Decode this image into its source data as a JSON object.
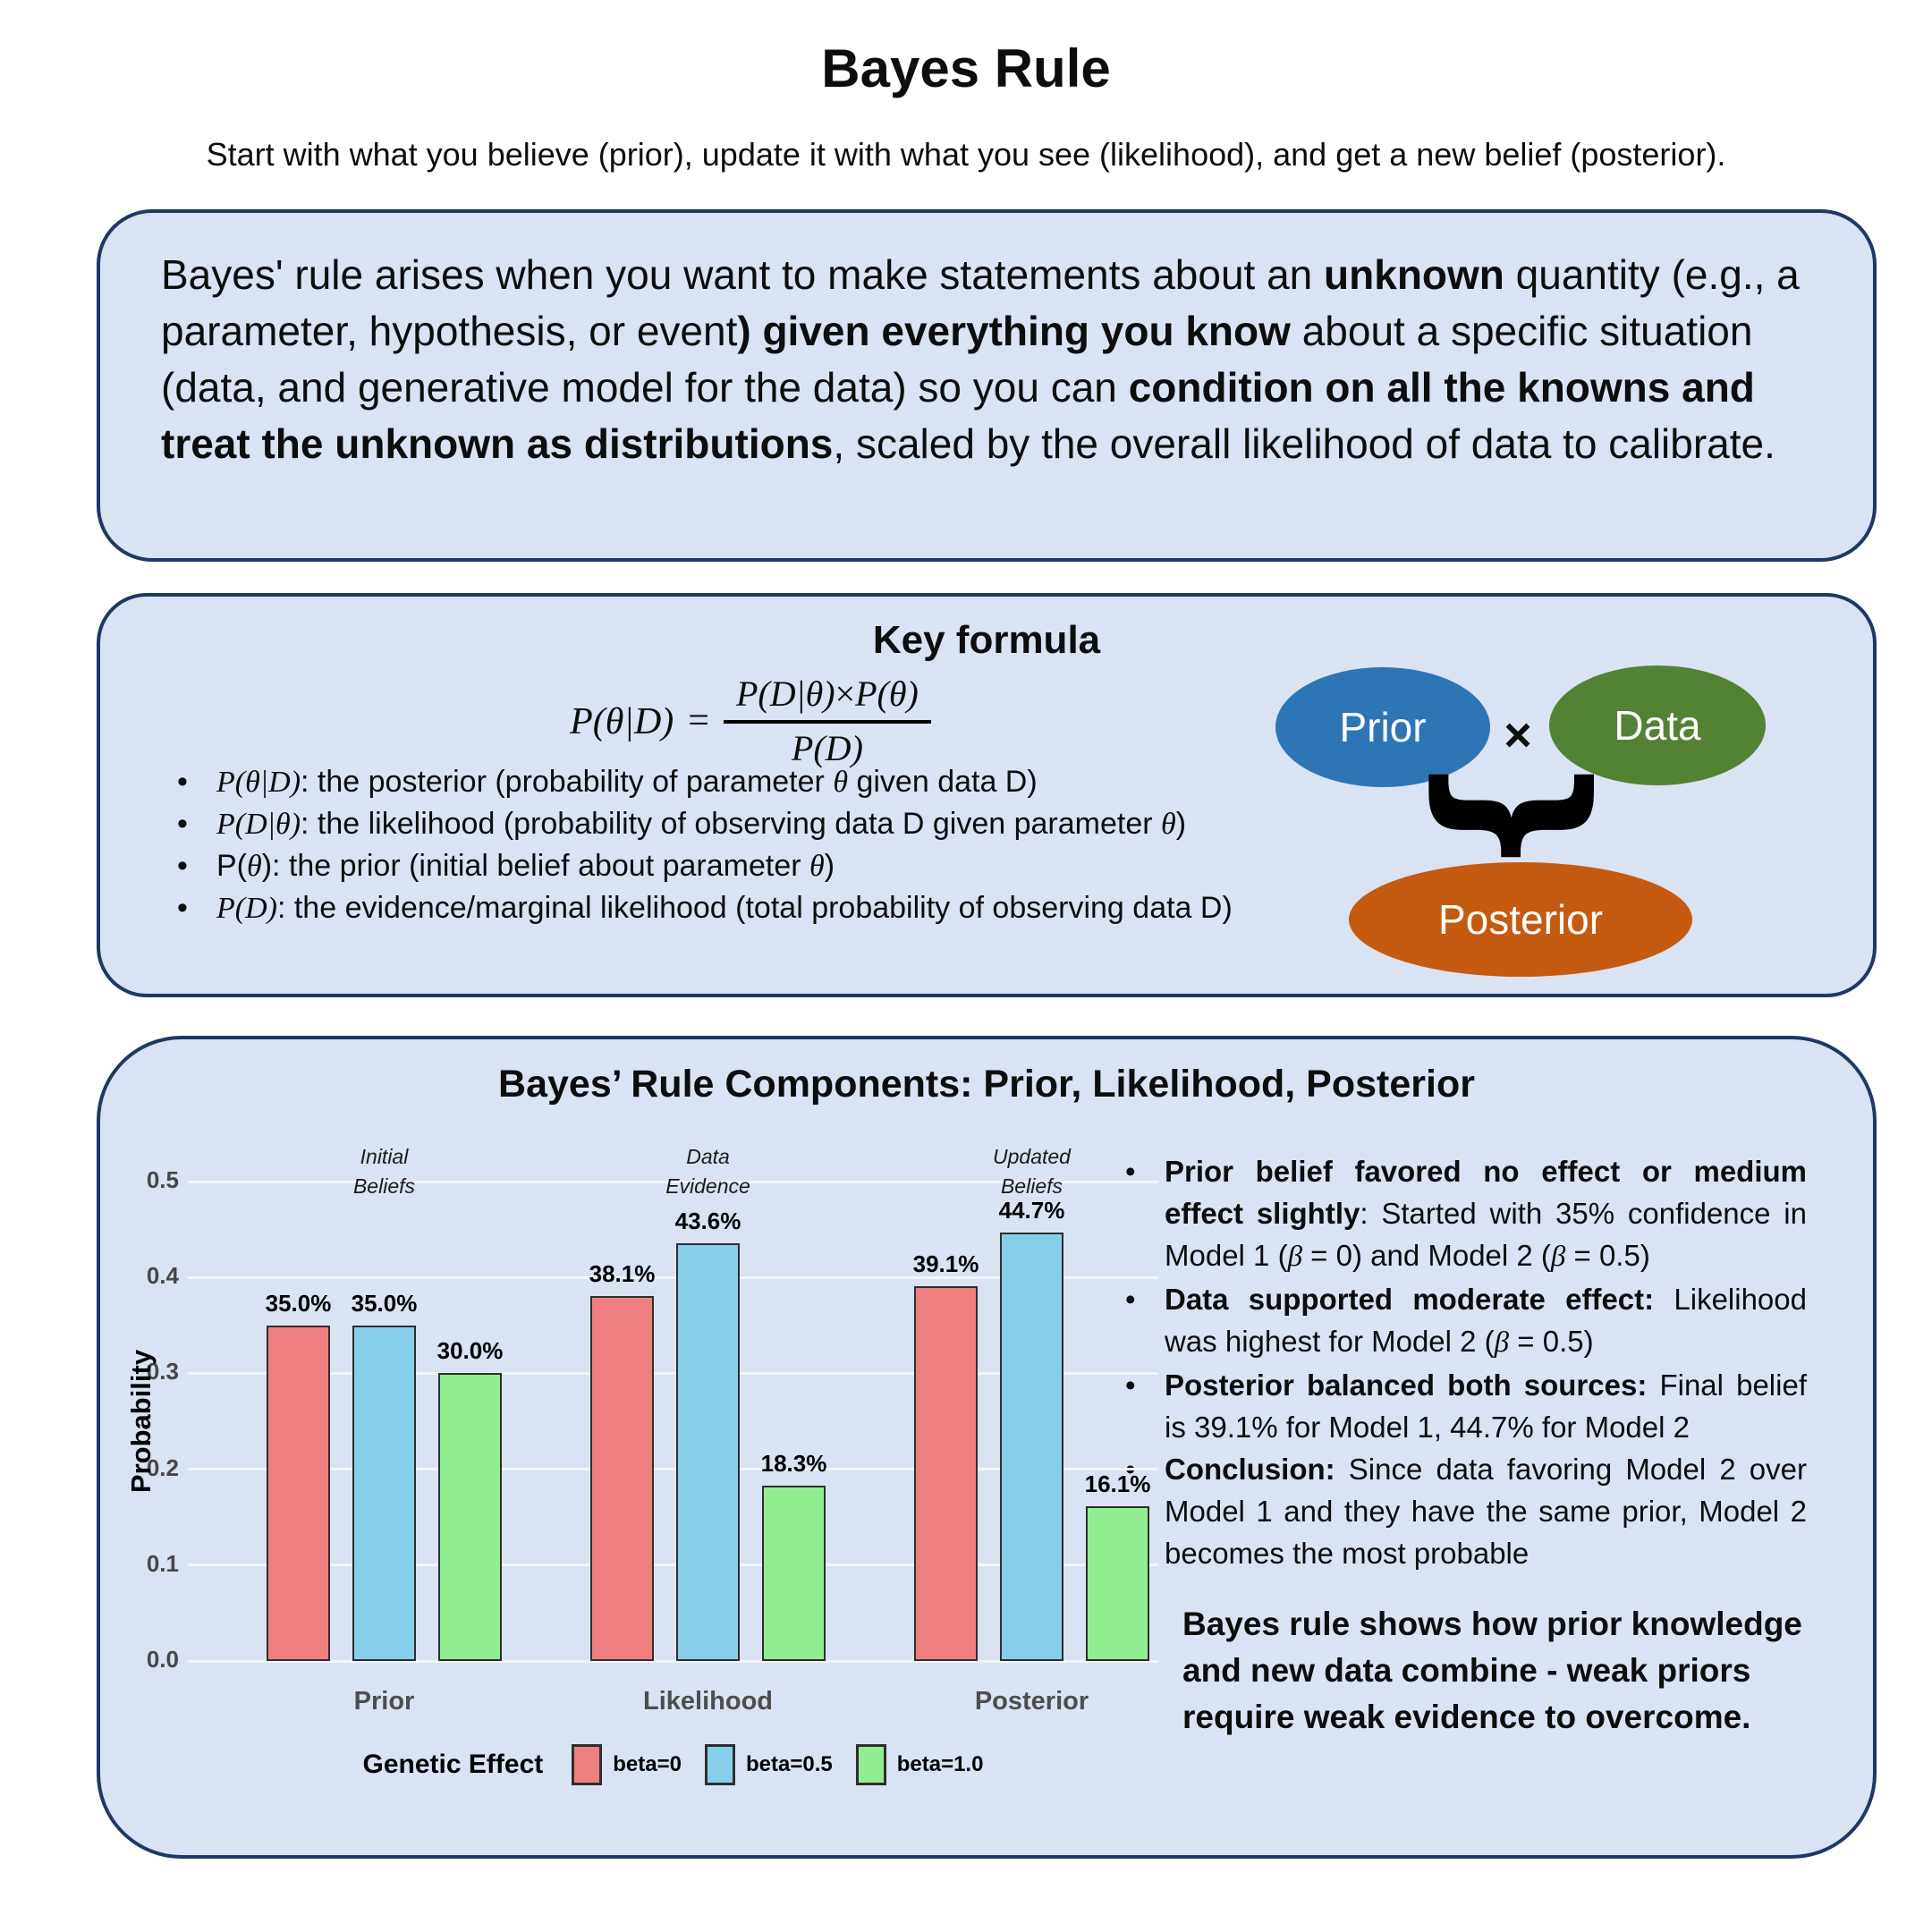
{
  "page": {
    "title": "Bayes Rule",
    "subtitle": "Start with what you believe (prior), update it with what you see (likelihood), and get a new belief (posterior)."
  },
  "theme": {
    "box_background": "#dae3f3",
    "box_border": "#1f3864",
    "grid_color": "#f2f6fb",
    "tick_color": "#474747",
    "category_color": "#4d4d4d"
  },
  "intro_box": {
    "segments": [
      {
        "t": "Bayes' rule arises when you want to make statements about an "
      },
      {
        "t": "unknown",
        "b": 1
      },
      {
        "t": " quantity (e.g., a parameter, hypothesis, or event"
      },
      {
        "t": ") given everything you know",
        "b": 1
      },
      {
        "t": " about a specific situation (data, and generative model for the data) so you can "
      },
      {
        "t": "condition on all the knowns and treat the unknown as distributions",
        "b": 1
      },
      {
        "t": ", scaled by the overall likelihood of data to calibrate."
      }
    ]
  },
  "formula_box": {
    "title": "Key formula",
    "formula": {
      "lhs": [
        {
          "t": "P(θ|D)",
          "m": 1
        }
      ],
      "eq": "=",
      "numerator": [
        {
          "t": "P(D|θ)",
          "m": 1
        },
        {
          "t": "×",
          "s": 1
        },
        {
          "t": "P(θ)",
          "m": 1
        }
      ],
      "denominator": [
        {
          "t": "P(D)",
          "m": 1
        }
      ]
    },
    "bullets": [
      [
        {
          "t": "P(θ|D)",
          "m": 1
        },
        {
          "t": ": the posterior (probability of parameter "
        },
        {
          "t": "θ",
          "m": 1
        },
        {
          "t": " given data D)"
        }
      ],
      [
        {
          "t": "P(D|θ)",
          "m": 1
        },
        {
          "t": ": the likelihood (probability of observing data D given parameter "
        },
        {
          "t": "θ",
          "m": 1
        },
        {
          "t": ")"
        }
      ],
      [
        {
          "t": "P("
        },
        {
          "t": "θ",
          "m": 1
        },
        {
          "t": "): the prior (initial belief about parameter "
        },
        {
          "t": "θ",
          "m": 1
        },
        {
          "t": ")"
        }
      ],
      [
        {
          "t": "P(D)",
          "m": 1
        },
        {
          "t": ": the evidence/marginal likelihood (total probability of observing data D)"
        }
      ]
    ],
    "diagram": {
      "prior_label": "Prior",
      "times": "×",
      "data_label": "Data",
      "brace_glyph": "}",
      "posterior_label": "Posterior",
      "prior_color": "#2e75b6",
      "data_color": "#548235",
      "posterior_color": "#c55a11"
    }
  },
  "chart_box": {
    "bullets": [
      [
        {
          "t": "Prior belief favored no effect or medium effect slightly",
          "b": 1
        },
        {
          "t": ": Started with 35% confidence in Model 1 ("
        },
        {
          "t": "β",
          "m": 1
        },
        {
          "t": " = 0) and Model 2 ("
        },
        {
          "t": "β",
          "m": 1
        },
        {
          "t": " = 0.5)"
        }
      ],
      [
        {
          "t": "Data supported moderate effect:",
          "b": 1
        },
        {
          "t": " Likelihood was highest for Model 2 ("
        },
        {
          "t": "β",
          "m": 1
        },
        {
          "t": " = 0.5)"
        }
      ],
      [
        {
          "t": "Posterior balanced both sources:",
          "b": 1
        },
        {
          "t": " Final belief is 39.1% for Model 1, 44.7% for Model 2"
        }
      ],
      [
        {
          "t": "Conclusion:",
          "b": 1
        },
        {
          "t": " Since data favoring Model 2 over Model 1 and they have the same prior, Model 2 becomes the most probable"
        }
      ]
    ],
    "statement": "Bayes rule shows how prior knowledge and new data combine - weak priors require weak evidence to overcome."
  },
  "chart_data": {
    "type": "bar",
    "title": "Bayes’ Rule Components: Prior, Likelihood, Posterior",
    "categories": [
      "Prior",
      "Likelihood",
      "Posterior"
    ],
    "series": [
      {
        "name": "beta=0",
        "color": "#F08080",
        "values": [
          0.35,
          0.381,
          0.391
        ],
        "labels": [
          "35.0%",
          "38.1%",
          "39.1%"
        ]
      },
      {
        "name": "beta=0.5",
        "color": "#87CEEB",
        "values": [
          0.35,
          0.436,
          0.447
        ],
        "labels": [
          "35.0%",
          "43.6%",
          "44.7%"
        ]
      },
      {
        "name": "beta=1.0",
        "color": "#90EE90",
        "values": [
          0.3,
          0.183,
          0.161
        ],
        "labels": [
          "30.0%",
          "18.3%",
          "16.1%"
        ]
      }
    ],
    "group_annotations": [
      [
        "Initial",
        "Beliefs"
      ],
      [
        "Data",
        "Evidence"
      ],
      [
        "Updated",
        "Beliefs"
      ]
    ],
    "ylabel": "Probability",
    "ylim": [
      0,
      0.5
    ],
    "yticks": [
      "0.0",
      "0.1",
      "0.2",
      "0.3",
      "0.4",
      "0.5"
    ],
    "grid": "horizontal",
    "legend_title": "Genetic Effect",
    "legend_position": "bottom"
  }
}
